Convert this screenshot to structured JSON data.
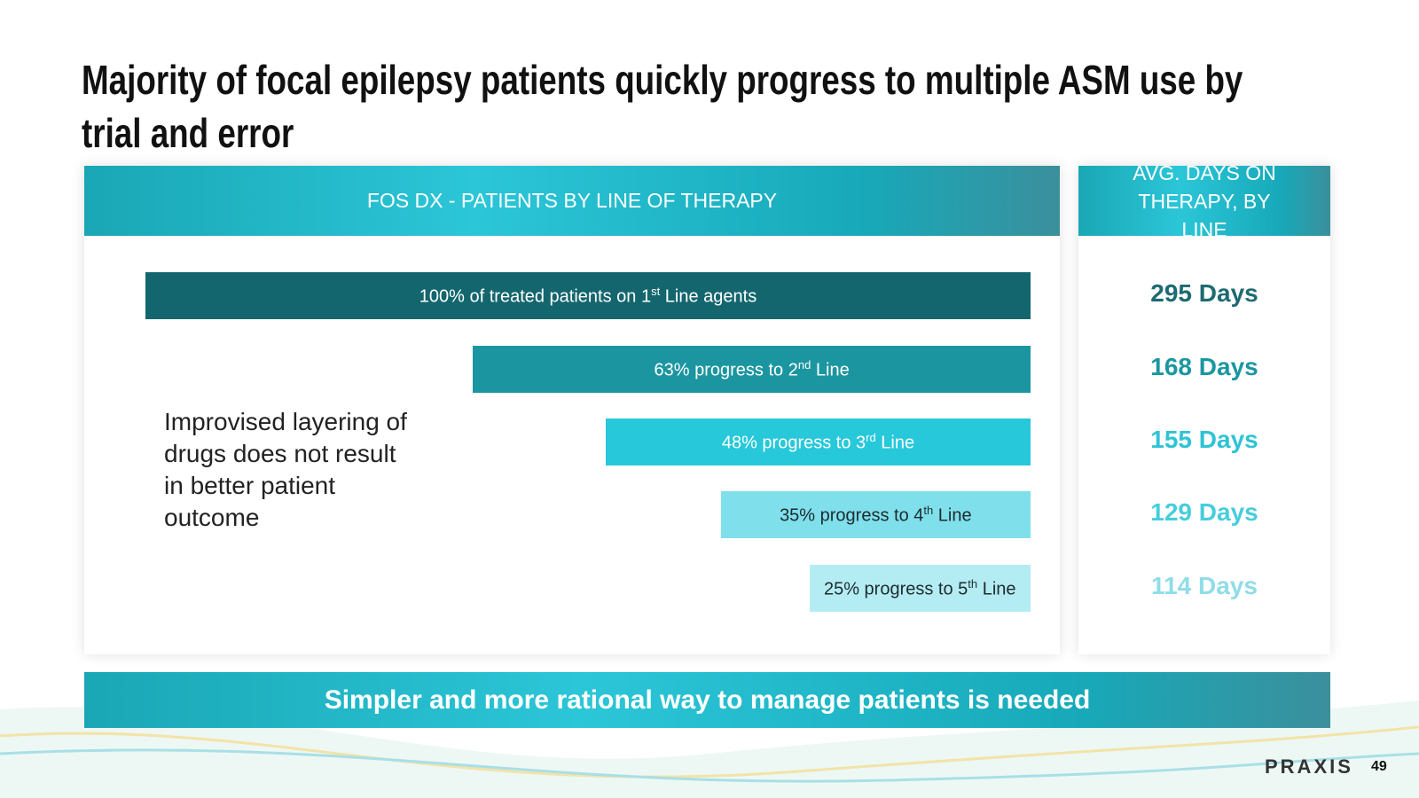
{
  "title": "Majority of focal epilepsy patients quickly progress to multiple ASM use by trial and error",
  "left_panel": {
    "header": "FOS DX - PATIENTS BY LINE OF THERAPY",
    "note": "Improvised layering of drugs does not result in better patient outcome"
  },
  "chart_data": {
    "type": "bar",
    "orientation": "horizontal",
    "values": [
      100,
      63,
      48,
      35,
      25
    ],
    "value_labels": [
      [
        "100% of treated patients on 1",
        "st",
        " Line agents"
      ],
      [
        "63% progress to 2",
        "nd",
        " Line"
      ],
      [
        "48% progress to 3",
        "rd",
        " Line"
      ],
      [
        "35% progress to 4",
        "th",
        " Line"
      ],
      [
        "25% progress to 5",
        "th",
        " Line"
      ]
    ],
    "colors": [
      "#14666e",
      "#1b96a0",
      "#27c8da",
      "#7fe0ec",
      "#b4ecf3"
    ],
    "label_colors": [
      "#ffffff",
      "#ffffff",
      "#ffffff",
      "#1d2b2e",
      "#1d2b2e"
    ]
  },
  "right_panel": {
    "header": "AVG. DAYS ON THERAPY, BY LINE",
    "days": [
      "295 Days",
      "168 Days",
      "155 Days",
      "129 Days",
      "114 Days"
    ],
    "colors": [
      "#1d6a72",
      "#1b96a0",
      "#2fc3d6",
      "#47cddd",
      "#8fdde8"
    ]
  },
  "banner": "Simpler and more rational way to manage patients is needed",
  "footer": {
    "logo": "PRAXIS",
    "page": "49"
  }
}
